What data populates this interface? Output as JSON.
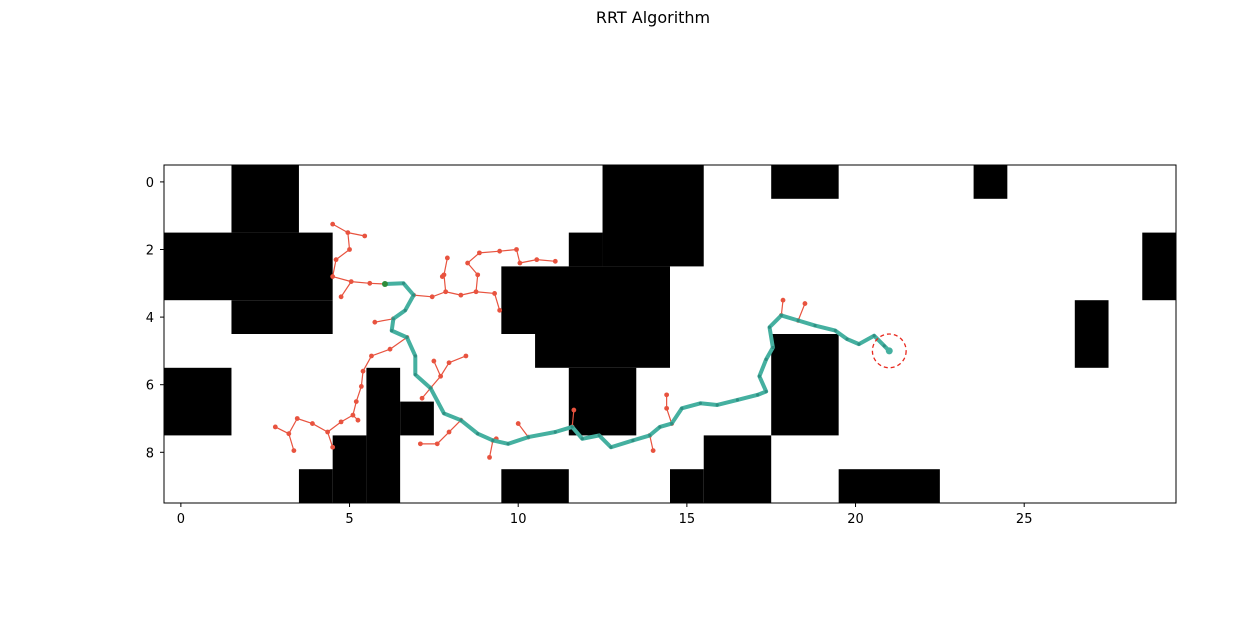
{
  "chart_data": {
    "type": "scatter",
    "title": "RRT Algorithm",
    "xlabel": "",
    "ylabel": "",
    "xlim": [
      -0.5,
      29.5
    ],
    "ylim": [
      9.5,
      -0.5
    ],
    "x_ticks": [
      0,
      5,
      10,
      15,
      20,
      25
    ],
    "y_ticks": [
      0,
      2,
      4,
      6,
      8
    ],
    "grid": false,
    "colors": {
      "obstacle": "#000000",
      "free": "#ffffff",
      "tree": "#e8533f",
      "path": "#45b0a0",
      "start": "#2e8b3a",
      "goal_region": "#e8281e"
    },
    "obstacles": [
      {
        "x": 1.5,
        "y": -0.5,
        "w": 2,
        "h": 2
      },
      {
        "x": -0.5,
        "y": 1.5,
        "w": 5,
        "h": 2
      },
      {
        "x": 1.5,
        "y": 3.5,
        "w": 3,
        "h": 1
      },
      {
        "x": 12.5,
        "y": -0.5,
        "w": 3,
        "h": 3
      },
      {
        "x": 11.5,
        "y": 1.5,
        "w": 1,
        "h": 1
      },
      {
        "x": 9.5,
        "y": 2.5,
        "w": 5,
        "h": 2
      },
      {
        "x": 10.5,
        "y": 4.5,
        "w": 4,
        "h": 1
      },
      {
        "x": 11.5,
        "y": 5.5,
        "w": 2,
        "h": 2
      },
      {
        "x": 17.5,
        "y": -0.5,
        "w": 2,
        "h": 1
      },
      {
        "x": 23.5,
        "y": -0.5,
        "w": 1,
        "h": 1
      },
      {
        "x": 28.5,
        "y": 1.5,
        "w": 1,
        "h": 2
      },
      {
        "x": 26.5,
        "y": 3.5,
        "w": 1,
        "h": 2
      },
      {
        "x": 17.5,
        "y": 4.5,
        "w": 2,
        "h": 3
      },
      {
        "x": -0.5,
        "y": 5.5,
        "w": 2,
        "h": 2
      },
      {
        "x": 5.5,
        "y": 5.5,
        "w": 1,
        "h": 4
      },
      {
        "x": 6.5,
        "y": 6.5,
        "w": 1,
        "h": 1
      },
      {
        "x": 4.5,
        "y": 7.5,
        "w": 1,
        "h": 2
      },
      {
        "x": 3.5,
        "y": 8.5,
        "w": 1,
        "h": 1
      },
      {
        "x": 9.5,
        "y": 8.5,
        "w": 2,
        "h": 1
      },
      {
        "x": 15.5,
        "y": 7.5,
        "w": 2,
        "h": 2
      },
      {
        "x": 14.5,
        "y": 8.5,
        "w": 1,
        "h": 1
      },
      {
        "x": 19.5,
        "y": 8.5,
        "w": 3,
        "h": 1
      }
    ],
    "start": [
      6.05,
      3.02
    ],
    "goal": [
      21.0,
      5.0
    ],
    "goal_radius": 0.5,
    "path": [
      [
        6.05,
        3.02
      ],
      [
        6.6,
        3.0
      ],
      [
        6.9,
        3.35
      ],
      [
        6.65,
        3.8
      ],
      [
        6.3,
        4.05
      ],
      [
        6.25,
        4.4
      ],
      [
        6.7,
        4.6
      ],
      [
        6.95,
        5.15
      ],
      [
        6.95,
        5.7
      ],
      [
        7.4,
        6.1
      ],
      [
        7.8,
        6.85
      ],
      [
        8.3,
        7.05
      ],
      [
        8.8,
        7.45
      ],
      [
        9.25,
        7.65
      ],
      [
        9.7,
        7.75
      ],
      [
        10.3,
        7.55
      ],
      [
        11.1,
        7.4
      ],
      [
        11.6,
        7.25
      ],
      [
        11.9,
        7.6
      ],
      [
        12.4,
        7.5
      ],
      [
        12.75,
        7.85
      ],
      [
        13.4,
        7.65
      ],
      [
        13.9,
        7.5
      ],
      [
        14.2,
        7.25
      ],
      [
        14.55,
        7.15
      ],
      [
        14.85,
        6.7
      ],
      [
        15.4,
        6.55
      ],
      [
        15.9,
        6.6
      ],
      [
        16.5,
        6.45
      ],
      [
        17.1,
        6.3
      ],
      [
        17.35,
        6.2
      ],
      [
        17.15,
        5.75
      ],
      [
        17.35,
        5.25
      ],
      [
        17.55,
        4.9
      ],
      [
        17.45,
        4.3
      ],
      [
        17.8,
        3.95
      ],
      [
        18.3,
        4.1
      ],
      [
        18.8,
        4.25
      ],
      [
        19.4,
        4.4
      ],
      [
        19.75,
        4.65
      ],
      [
        20.1,
        4.8
      ],
      [
        20.55,
        4.55
      ],
      [
        20.85,
        4.85
      ],
      [
        21.0,
        5.0
      ]
    ],
    "tree_edges": [
      [
        [
          4.5,
          2.8
        ],
        [
          5.05,
          2.95
        ]
      ],
      [
        [
          5.05,
          2.95
        ],
        [
          5.6,
          3.0
        ]
      ],
      [
        [
          5.6,
          3.0
        ],
        [
          6.05,
          3.02
        ]
      ],
      [
        [
          5.05,
          2.95
        ],
        [
          4.75,
          3.4
        ]
      ],
      [
        [
          4.5,
          2.8
        ],
        [
          4.6,
          2.3
        ]
      ],
      [
        [
          4.6,
          2.3
        ],
        [
          5.0,
          2.0
        ]
      ],
      [
        [
          5.0,
          2.0
        ],
        [
          4.95,
          1.5
        ]
      ],
      [
        [
          4.95,
          1.5
        ],
        [
          4.5,
          1.25
        ]
      ],
      [
        [
          4.95,
          1.5
        ],
        [
          5.45,
          1.6
        ]
      ],
      [
        [
          6.9,
          3.35
        ],
        [
          7.45,
          3.4
        ]
      ],
      [
        [
          7.45,
          3.4
        ],
        [
          7.85,
          3.25
        ]
      ],
      [
        [
          7.85,
          3.25
        ],
        [
          8.3,
          3.35
        ]
      ],
      [
        [
          8.3,
          3.35
        ],
        [
          8.75,
          3.25
        ]
      ],
      [
        [
          8.75,
          3.25
        ],
        [
          9.3,
          3.3
        ]
      ],
      [
        [
          9.3,
          3.3
        ],
        [
          9.45,
          3.8
        ]
      ],
      [
        [
          7.85,
          3.25
        ],
        [
          7.8,
          2.75
        ]
      ],
      [
        [
          7.8,
          2.75
        ],
        [
          7.9,
          2.25
        ]
      ],
      [
        [
          7.8,
          2.75
        ],
        [
          7.75,
          2.8
        ]
      ],
      [
        [
          8.75,
          3.25
        ],
        [
          8.8,
          2.75
        ]
      ],
      [
        [
          8.8,
          2.75
        ],
        [
          8.5,
          2.4
        ]
      ],
      [
        [
          8.5,
          2.4
        ],
        [
          8.85,
          2.1
        ]
      ],
      [
        [
          8.85,
          2.1
        ],
        [
          9.45,
          2.05
        ]
      ],
      [
        [
          9.45,
          2.05
        ],
        [
          9.95,
          2.0
        ]
      ],
      [
        [
          9.95,
          2.0
        ],
        [
          10.05,
          2.4
        ]
      ],
      [
        [
          10.05,
          2.4
        ],
        [
          10.55,
          2.3
        ]
      ],
      [
        [
          10.55,
          2.3
        ],
        [
          11.1,
          2.35
        ]
      ],
      [
        [
          6.3,
          4.05
        ],
        [
          5.75,
          4.15
        ]
      ],
      [
        [
          6.7,
          4.6
        ],
        [
          6.2,
          4.95
        ]
      ],
      [
        [
          6.2,
          4.95
        ],
        [
          5.65,
          5.15
        ]
      ],
      [
        [
          5.65,
          5.15
        ],
        [
          5.4,
          5.6
        ]
      ],
      [
        [
          5.4,
          5.6
        ],
        [
          5.35,
          6.05
        ]
      ],
      [
        [
          5.35,
          6.05
        ],
        [
          5.2,
          6.5
        ]
      ],
      [
        [
          5.2,
          6.5
        ],
        [
          5.1,
          6.9
        ]
      ],
      [
        [
          5.1,
          6.9
        ],
        [
          4.75,
          7.1
        ]
      ],
      [
        [
          4.75,
          7.1
        ],
        [
          4.35,
          7.4
        ]
      ],
      [
        [
          4.35,
          7.4
        ],
        [
          4.5,
          7.85
        ]
      ],
      [
        [
          4.35,
          7.4
        ],
        [
          3.9,
          7.15
        ]
      ],
      [
        [
          3.9,
          7.15
        ],
        [
          3.45,
          7.0
        ]
      ],
      [
        [
          3.45,
          7.0
        ],
        [
          3.2,
          7.45
        ]
      ],
      [
        [
          3.2,
          7.45
        ],
        [
          2.8,
          7.25
        ]
      ],
      [
        [
          3.2,
          7.45
        ],
        [
          3.35,
          7.95
        ]
      ],
      [
        [
          5.1,
          6.9
        ],
        [
          5.25,
          7.05
        ]
      ],
      [
        [
          7.4,
          6.1
        ],
        [
          7.15,
          6.4
        ]
      ],
      [
        [
          7.4,
          6.1
        ],
        [
          7.7,
          5.75
        ]
      ],
      [
        [
          7.7,
          5.75
        ],
        [
          7.5,
          5.3
        ]
      ],
      [
        [
          7.7,
          5.75
        ],
        [
          7.95,
          5.35
        ]
      ],
      [
        [
          7.95,
          5.35
        ],
        [
          8.45,
          5.15
        ]
      ],
      [
        [
          8.3,
          7.05
        ],
        [
          7.95,
          7.4
        ]
      ],
      [
        [
          7.95,
          7.4
        ],
        [
          7.6,
          7.75
        ]
      ],
      [
        [
          7.6,
          7.75
        ],
        [
          7.1,
          7.75
        ]
      ],
      [
        [
          9.25,
          7.65
        ],
        [
          9.15,
          8.15
        ]
      ],
      [
        [
          9.25,
          7.65
        ],
        [
          9.35,
          7.6
        ]
      ],
      [
        [
          10.3,
          7.55
        ],
        [
          10.0,
          7.15
        ]
      ],
      [
        [
          11.6,
          7.25
        ],
        [
          11.65,
          6.75
        ]
      ],
      [
        [
          13.9,
          7.5
        ],
        [
          14.0,
          7.95
        ]
      ],
      [
        [
          14.55,
          7.15
        ],
        [
          14.4,
          6.7
        ]
      ],
      [
        [
          14.4,
          6.7
        ],
        [
          14.4,
          6.3
        ]
      ],
      [
        [
          17.8,
          3.95
        ],
        [
          17.85,
          3.5
        ]
      ],
      [
        [
          18.3,
          4.1
        ],
        [
          18.5,
          3.6
        ]
      ]
    ]
  }
}
